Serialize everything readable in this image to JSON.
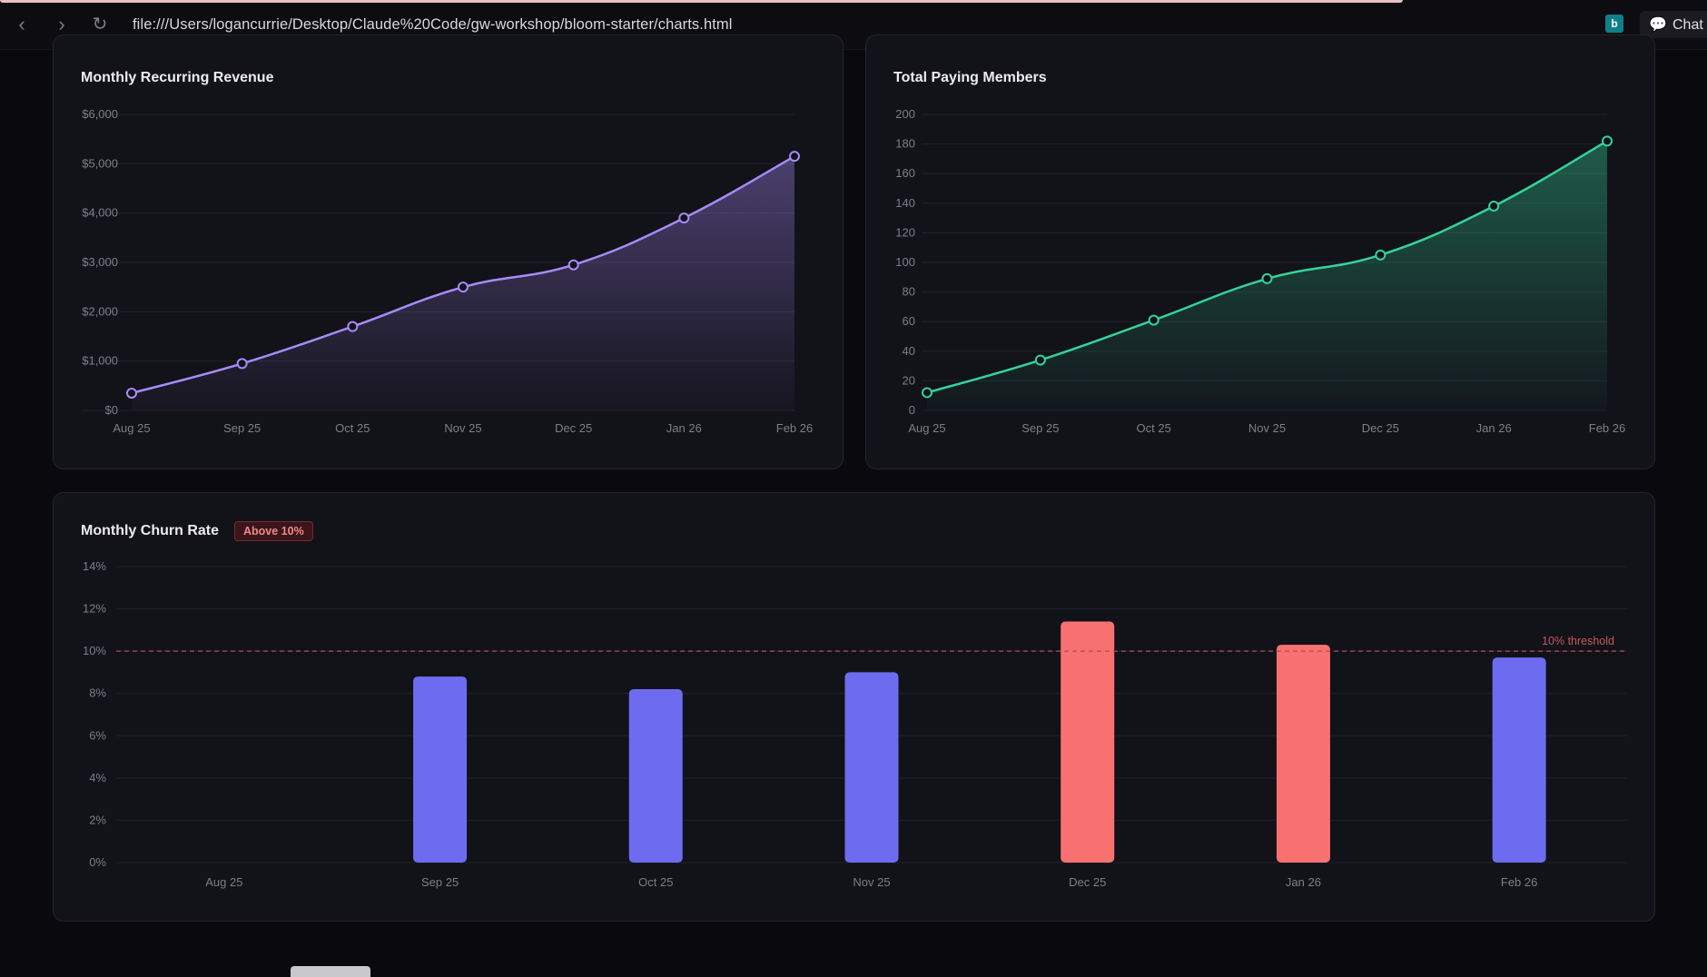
{
  "browser": {
    "url": "file:///Users/logancurrie/Desktop/Claude%20Code/gw-workshop/bloom-starter/charts.html",
    "chat_label": "Chat"
  },
  "mrr": {
    "title": "Monthly Recurring Revenue",
    "chart_data": {
      "type": "area",
      "categories": [
        "Aug 25",
        "Sep 25",
        "Oct 25",
        "Nov 25",
        "Dec 25",
        "Jan 26",
        "Feb 26"
      ],
      "values": [
        350,
        950,
        1700,
        2500,
        2950,
        3900,
        5150
      ],
      "yticks": [
        "$0",
        "$1,000",
        "$2,000",
        "$3,000",
        "$4,000",
        "$5,000",
        "$6,000"
      ],
      "ylim": [
        0,
        6000
      ],
      "color": "#a78bfa"
    }
  },
  "members": {
    "title": "Total Paying Members",
    "chart_data": {
      "type": "area",
      "categories": [
        "Aug 25",
        "Sep 25",
        "Oct 25",
        "Nov 25",
        "Dec 25",
        "Jan 26",
        "Feb 26"
      ],
      "values": [
        12,
        34,
        61,
        89,
        105,
        138,
        182
      ],
      "yticks": [
        "0",
        "20",
        "40",
        "60",
        "80",
        "100",
        "120",
        "140",
        "160",
        "180",
        "200"
      ],
      "ylim": [
        0,
        200
      ],
      "color": "#34d399"
    }
  },
  "churn": {
    "title": "Monthly Churn Rate",
    "badge": "Above 10%",
    "chart_data": {
      "type": "bar",
      "categories": [
        "Aug 25",
        "Sep 25",
        "Oct 25",
        "Nov 25",
        "Dec 25",
        "Jan 26",
        "Feb 26"
      ],
      "values": [
        0,
        8.8,
        8.2,
        9.0,
        11.4,
        10.3,
        9.7
      ],
      "yticks": [
        "0%",
        "2%",
        "4%",
        "6%",
        "8%",
        "10%",
        "12%",
        "14%"
      ],
      "ylim": [
        0,
        14
      ],
      "threshold": 10,
      "threshold_label": "10% threshold",
      "normal_color": "#6d6cf0",
      "above_color": "#f87171"
    }
  }
}
